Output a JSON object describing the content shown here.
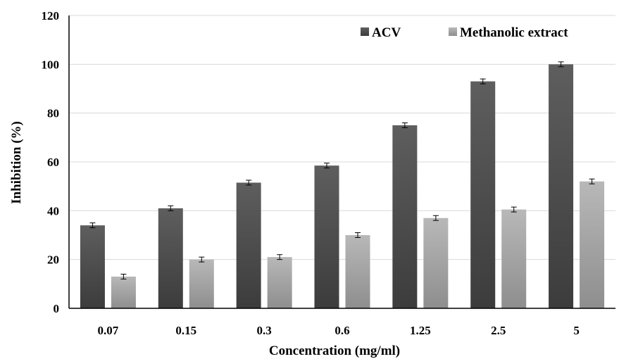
{
  "chart_data": {
    "type": "bar",
    "title": "",
    "xlabel": "Concentration (mg/ml)",
    "ylabel": "Inhibition (%)",
    "ylim": [
      0,
      120
    ],
    "yticks": [
      "0",
      "20",
      "40",
      "60",
      "80",
      "100",
      "120"
    ],
    "categories": [
      "0.07",
      "0.15",
      "0.3",
      "0.6",
      "1.25",
      "2.5",
      "5"
    ],
    "series": [
      {
        "name": "ACV",
        "values": [
          34,
          41,
          51.5,
          58.5,
          75,
          93,
          100
        ],
        "errors": [
          1,
          1,
          1,
          1,
          1,
          1,
          1
        ],
        "color": "#4d4d4d"
      },
      {
        "name": "Methanolic extract",
        "values": [
          13,
          20,
          21,
          30,
          37,
          40.5,
          52
        ],
        "errors": [
          1,
          1,
          1,
          1,
          1,
          1,
          1
        ],
        "color": "#a6a6a6"
      }
    ],
    "grid": true,
    "legend_position": "top-right"
  }
}
